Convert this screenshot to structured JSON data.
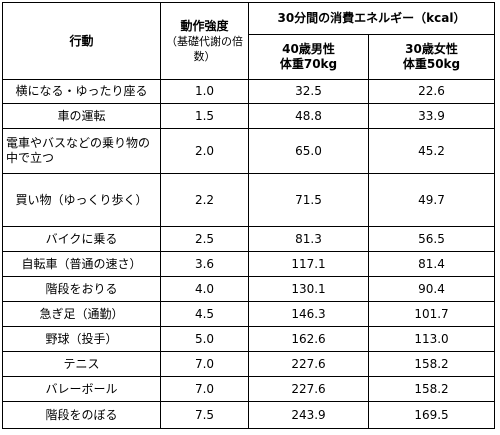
{
  "header": {
    "action": "行動",
    "intensity": "動作強度",
    "intensity_note": "（基礎代謝の倍数）",
    "energy": "30分間の消費エネルギー（kcal）",
    "male": [
      "40歳男性",
      "体重70kg"
    ],
    "female": [
      "30歳女性",
      "体重50kg"
    ]
  },
  "table": {
    "rows": [
      [
        "横になる・ゆったり座る",
        "1.0",
        "32.5",
        "22.6"
      ],
      [
        "車の運転",
        "1.5",
        "48.8",
        "33.9"
      ],
      [
        "電車やバスなどの乗り物の中で立つ",
        "2.0",
        "65.0",
        "45.2"
      ],
      [
        "買い物（ゆっくり歩く）",
        "2.2",
        "71.5",
        "49.7"
      ],
      [
        "バイクに乗る",
        "2.5",
        "81.3",
        "56.5"
      ],
      [
        "自転車（普通の速さ）",
        "3.6",
        "117.1",
        "81.4"
      ],
      [
        "階段をおりる",
        "4.0",
        "130.1",
        "90.4"
      ],
      [
        "急ぎ足（通勤）",
        "4.5",
        "146.3",
        "101.7"
      ],
      [
        "野球（投手）",
        "5.0",
        "162.6",
        "113.0"
      ],
      [
        "テニス",
        "7.0",
        "227.6",
        "158.2"
      ],
      [
        "バレーボール",
        "7.0",
        "227.6",
        "158.2"
      ],
      [
        "階段をのぼる",
        "7.5",
        "243.9",
        "169.5"
      ]
    ]
  }
}
